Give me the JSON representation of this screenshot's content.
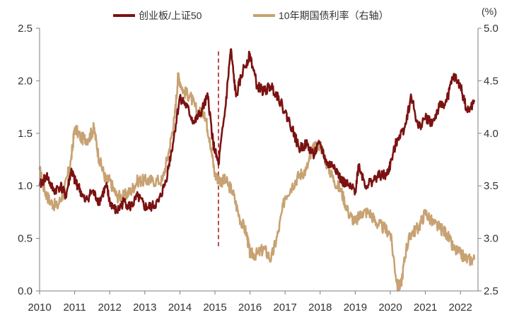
{
  "chart_data": {
    "type": "line",
    "x_range": [
      2010,
      2022.5
    ],
    "x_ticks": [
      "2010",
      "2011",
      "2012",
      "2013",
      "2014",
      "2015",
      "2016",
      "2017",
      "2018",
      "2019",
      "2020",
      "2021",
      "2022"
    ],
    "y_left": {
      "range": [
        0,
        2.5
      ],
      "ticks": [
        "0.0",
        "0.5",
        "1.0",
        "1.5",
        "2.0",
        "2.5"
      ]
    },
    "y_right": {
      "range": [
        2.5,
        5.0
      ],
      "ticks": [
        "2.5",
        "3.0",
        "3.5",
        "4.0",
        "4.5",
        "5.0"
      ],
      "unit": "(%)"
    },
    "legend_position": "top",
    "grid": false,
    "annotation_line_x": 2015.1,
    "series": [
      {
        "name": "创业板/上证50",
        "axis": "left",
        "color": "#7b1212",
        "x": [
          2010.0,
          2010.2,
          2010.4,
          2010.6,
          2010.75,
          2010.9,
          2011.0,
          2011.1,
          2011.3,
          2011.5,
          2011.7,
          2011.9,
          2012.0,
          2012.2,
          2012.4,
          2012.6,
          2012.8,
          2013.0,
          2013.2,
          2013.4,
          2013.6,
          2013.8,
          2014.0,
          2014.2,
          2014.4,
          2014.6,
          2014.8,
          2014.95,
          2015.1,
          2015.3,
          2015.45,
          2015.6,
          2015.8,
          2016.0,
          2016.2,
          2016.4,
          2016.6,
          2016.8,
          2017.0,
          2017.2,
          2017.4,
          2017.6,
          2017.8,
          2018.0,
          2018.2,
          2018.4,
          2018.6,
          2018.8,
          2019.0,
          2019.1,
          2019.3,
          2019.5,
          2019.7,
          2019.9,
          2020.0,
          2020.2,
          2020.4,
          2020.6,
          2020.8,
          2021.0,
          2021.2,
          2021.4,
          2021.6,
          2021.8,
          2022.0,
          2022.2,
          2022.4
        ],
        "y": [
          1.0,
          1.1,
          0.95,
          1.0,
          0.9,
          1.15,
          1.05,
          1.0,
          0.85,
          0.95,
          0.85,
          1.0,
          0.85,
          0.75,
          0.85,
          0.8,
          0.9,
          0.8,
          0.8,
          0.85,
          1.05,
          1.4,
          1.85,
          1.75,
          1.6,
          1.7,
          1.85,
          1.4,
          1.2,
          1.75,
          2.3,
          1.85,
          2.1,
          2.25,
          1.95,
          1.9,
          1.95,
          1.85,
          1.7,
          1.55,
          1.35,
          1.4,
          1.3,
          1.4,
          1.2,
          1.2,
          1.05,
          1.0,
          0.95,
          1.2,
          1.0,
          1.05,
          1.1,
          1.1,
          1.2,
          1.45,
          1.55,
          1.85,
          1.55,
          1.65,
          1.6,
          1.75,
          1.8,
          2.05,
          1.95,
          1.7,
          1.8
        ]
      },
      {
        "name": "10年期国债利率（右轴）",
        "axis": "right",
        "color": "#c8a273",
        "x": [
          2010.0,
          2010.15,
          2010.3,
          2010.5,
          2010.7,
          2010.9,
          2011.0,
          2011.2,
          2011.4,
          2011.55,
          2011.7,
          2011.9,
          2012.0,
          2012.2,
          2012.4,
          2012.6,
          2012.8,
          2013.0,
          2013.2,
          2013.5,
          2013.7,
          2013.85,
          2013.95,
          2014.1,
          2014.3,
          2014.5,
          2014.7,
          2014.85,
          2015.0,
          2015.15,
          2015.3,
          2015.5,
          2015.7,
          2015.9,
          2016.0,
          2016.2,
          2016.4,
          2016.6,
          2016.8,
          2017.0,
          2017.2,
          2017.4,
          2017.6,
          2017.8,
          2018.0,
          2018.2,
          2018.4,
          2018.6,
          2018.8,
          2019.0,
          2019.2,
          2019.4,
          2019.6,
          2019.8,
          2020.0,
          2020.2,
          2020.3,
          2020.45,
          2020.6,
          2020.8,
          2021.0,
          2021.2,
          2021.4,
          2021.6,
          2021.8,
          2022.0,
          2022.2,
          2022.4
        ],
        "y": [
          3.65,
          3.45,
          3.35,
          3.3,
          3.45,
          3.75,
          4.05,
          3.95,
          3.95,
          4.05,
          3.75,
          3.55,
          3.55,
          3.4,
          3.4,
          3.45,
          3.55,
          3.55,
          3.55,
          3.55,
          3.85,
          4.15,
          4.55,
          4.4,
          4.35,
          4.2,
          4.2,
          3.95,
          3.6,
          3.55,
          3.55,
          3.45,
          3.2,
          3.05,
          2.85,
          2.85,
          2.9,
          2.8,
          3.05,
          3.4,
          3.5,
          3.6,
          3.65,
          3.85,
          3.9,
          3.7,
          3.55,
          3.45,
          3.25,
          3.15,
          3.25,
          3.25,
          3.15,
          3.1,
          3.05,
          2.55,
          2.55,
          2.9,
          3.05,
          3.1,
          3.25,
          3.15,
          3.1,
          3.05,
          2.9,
          2.85,
          2.8,
          2.8
        ]
      }
    ]
  }
}
